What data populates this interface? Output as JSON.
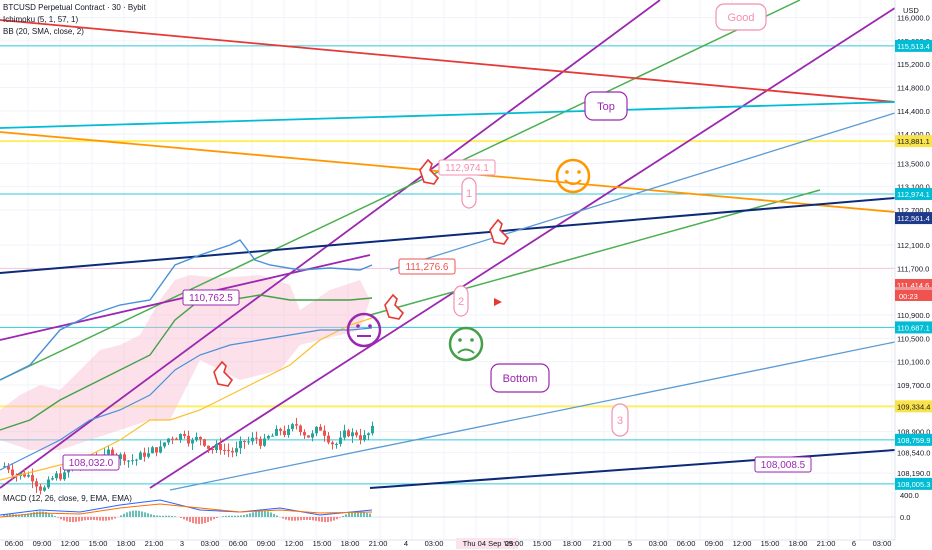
{
  "header": {
    "symbol": "BTCUSD Perpetual Contract · 30 · Bybit",
    "ichimoku": "Ichimoku (5, 1, 57, 1)",
    "bb": "BB (20, SMA, close, 2)",
    "macd": "MACD (12, 26, close, 9, EMA, EMA)"
  },
  "axis": {
    "currency": "USD",
    "countdown": "00:23"
  },
  "notes": {
    "good": "Good",
    "top": "Top",
    "bottom": "Bottom",
    "n1": "1",
    "n2": "2",
    "n3": "3"
  },
  "colors": {
    "bull": "#26a69a",
    "bear": "#ef5350",
    "purple": "#9c27b0",
    "green": "#4caf50",
    "red": "#e53935",
    "teal": "#00bcd4",
    "yellow": "#ffeb3b",
    "orange": "#ff9800",
    "navy": "#0d2a7a",
    "blue": "#5b9bd5",
    "pink": "#f8bbd0"
  },
  "chart_data": {
    "type": "candlestick",
    "y_label_unit": "USD",
    "ylim": [
      107900,
      116300
    ],
    "x_ticks": [
      "06:00",
      "09:00",
      "12:00",
      "15:00",
      "18:00",
      "21:00",
      "3",
      "03:00",
      "06:00",
      "09:00",
      "12:00",
      "15:00",
      "18:00",
      "21:00",
      "4",
      "03:00",
      "Thu 04 Sep '25",
      "09:00",
      "15:00",
      "18:00",
      "21:00",
      "5",
      "03:00",
      "06:00",
      "09:00",
      "12:00",
      "15:00",
      "18:00",
      "21:00",
      "6",
      "03:00"
    ],
    "y_ticks": [
      "116,000.0",
      "115,600.0",
      "115,200.0",
      "114,800.0",
      "114,400.0",
      "114,000.0",
      "113,500.0",
      "113,100.0",
      "112,700.0",
      "112,100.0",
      "111,700.0",
      "110,900.0",
      "110,500.0",
      "110,100.0",
      "109,700.0",
      "108,900.0",
      "108,540.0",
      "108,190.0"
    ],
    "price_labels": [
      {
        "label": "115,513.4",
        "value": 115513.4,
        "color": "#00bcd4"
      },
      {
        "label": "113,881.1",
        "value": 113881.1,
        "color": "#f9e24a"
      },
      {
        "label": "112,974.1",
        "value": 112974.1,
        "color": "#00bcd4"
      },
      {
        "label": "112,561.4",
        "value": 112561.4,
        "color": "#1e3a8a"
      },
      {
        "label": "111,414.6",
        "value": 111414.6,
        "color": "#ef5350"
      },
      {
        "label": "111,276.6",
        "value": 111276.6,
        "color": "#ef9a9a"
      },
      {
        "label": "110,687.1",
        "value": 110687.1,
        "color": "#00bcd4"
      },
      {
        "label": "109,334.4",
        "value": 109334.4,
        "color": "#f9e24a"
      },
      {
        "label": "108,759.9",
        "value": 108759.9,
        "color": "#00bcd4"
      },
      {
        "label": "108,005.3",
        "value": 108005.3,
        "color": "#00bcd4"
      }
    ],
    "annotations": [
      {
        "text": "112,974.1",
        "price": 112974.1
      },
      {
        "text": "111,276.6",
        "price": 111276.6
      },
      {
        "text": "110,762.5",
        "price": 110762.5
      },
      {
        "text": "108,032.0",
        "price": 108032.0
      },
      {
        "text": "108,008.5",
        "price": 108008.5
      }
    ],
    "horizontal_levels": [
      115513.4,
      113881.1,
      112974.1,
      111700,
      110687.1,
      109334.4,
      108759.9,
      108005.3
    ],
    "macd_ticks": [
      "400.0",
      "0.0"
    ]
  }
}
